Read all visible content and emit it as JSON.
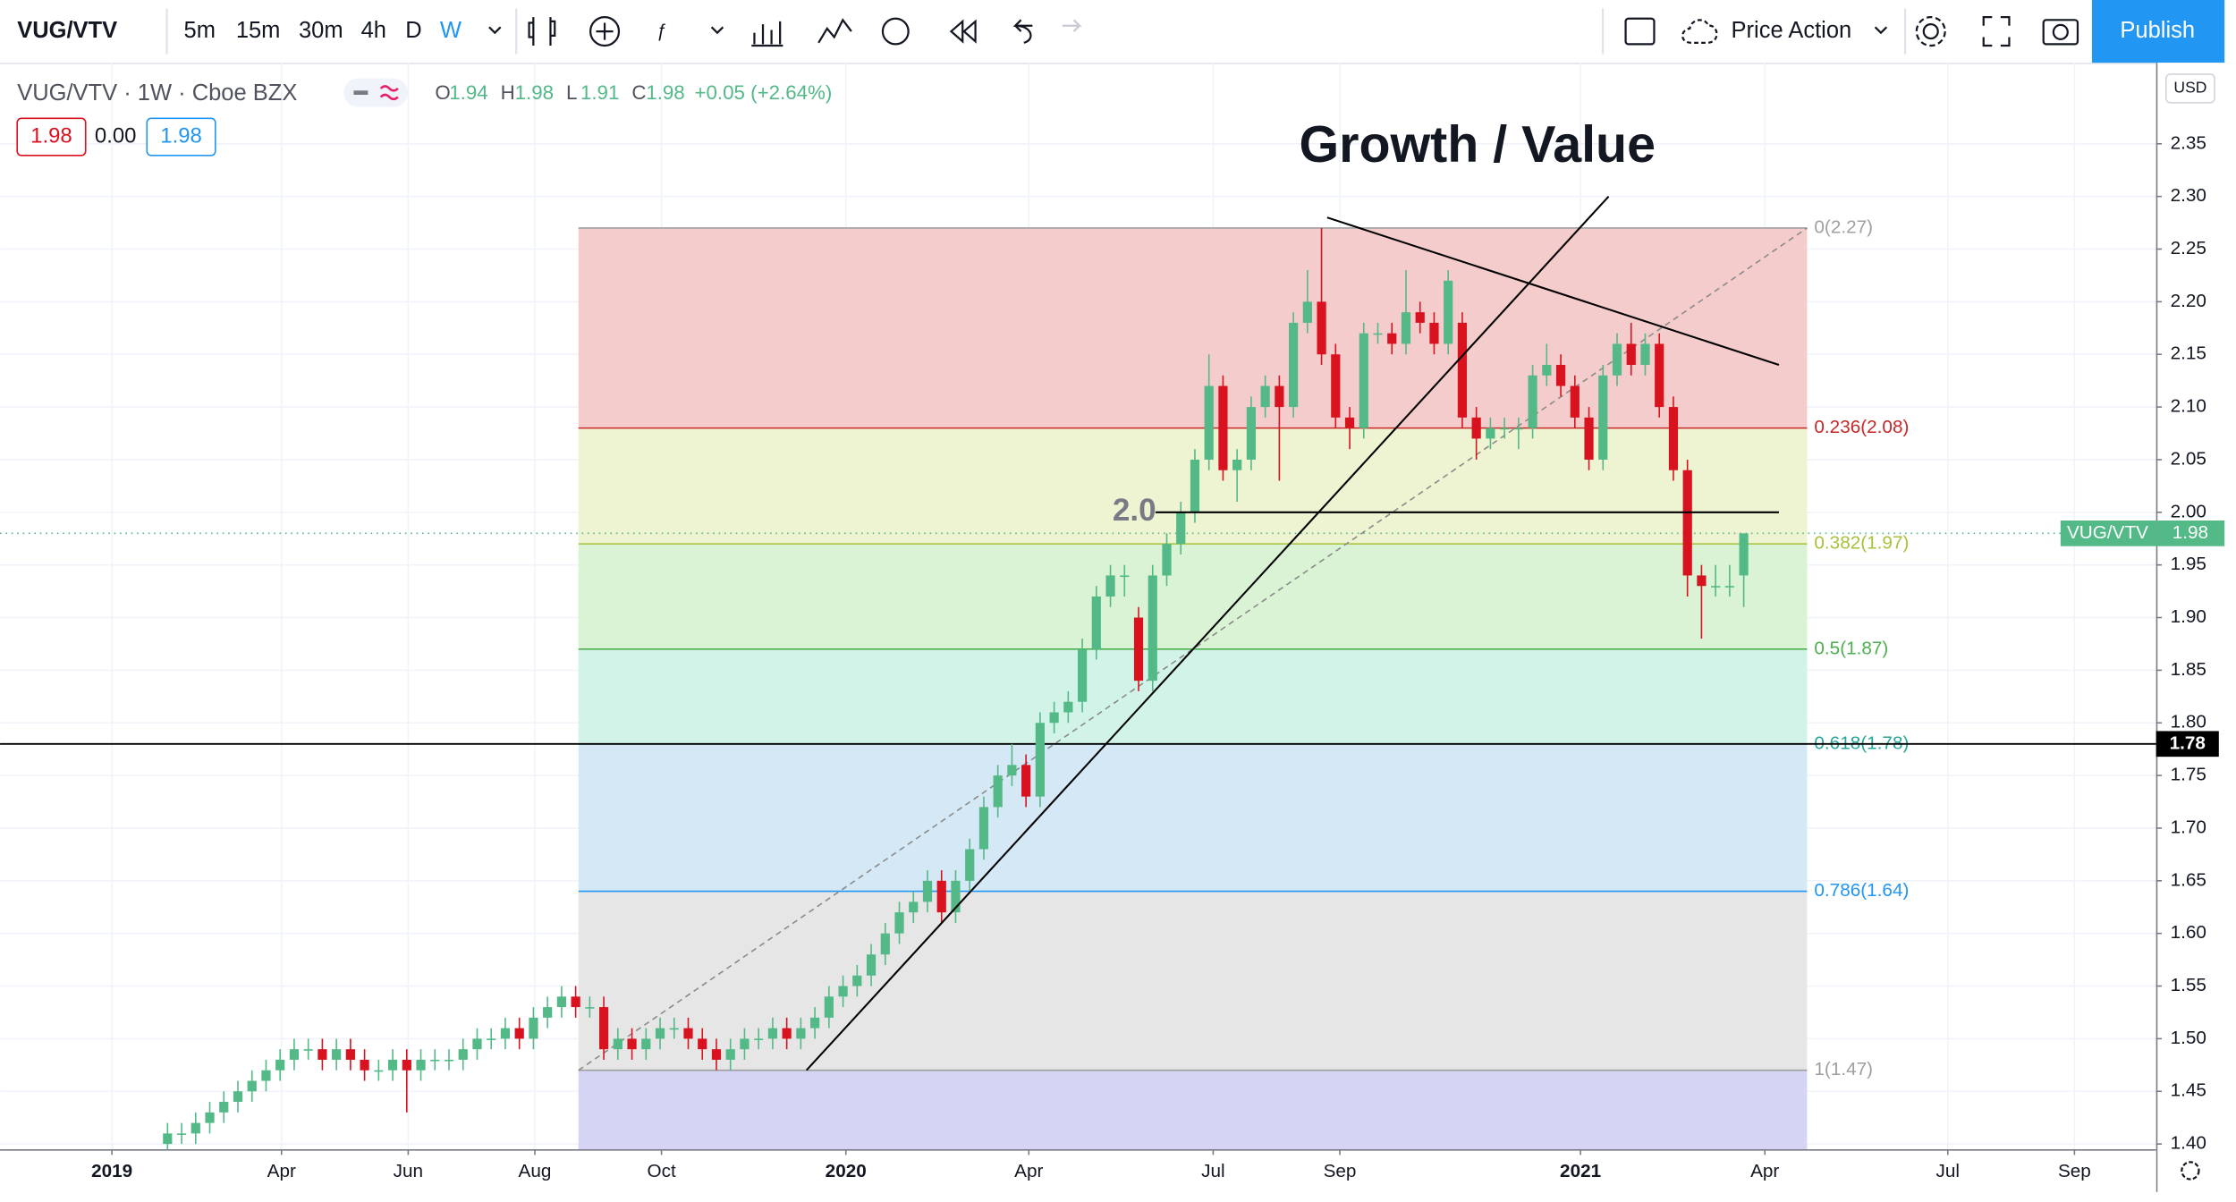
{
  "toolbar": {
    "symbol": "VUG/VTV",
    "intervals": [
      "5m",
      "15m",
      "30m",
      "4h",
      "D",
      "W"
    ],
    "active_interval": 5,
    "layout": "Price Action",
    "publish": "Publish"
  },
  "legend": {
    "title": "VUG/VTV · 1W · Cboe BZX",
    "ohlc": [
      {
        "key": "O",
        "value": 1.94
      },
      {
        "key": "H",
        "value": 1.98
      },
      {
        "key": "L",
        "value": 1.91
      },
      {
        "key": "C",
        "value": 1.98
      }
    ],
    "change": "+0.05 (+2.64%)",
    "boxes": [
      "1.98",
      "0.00",
      "1.98"
    ]
  },
  "chart_data": {
    "type": "candlestick",
    "title": "Growth / Value",
    "currency": "USD",
    "up_color": "#53b987",
    "down_color": "#d8121f",
    "xlim": [
      -11.9,
      141.3
    ],
    "ylim": [
      1.395,
      2.427
    ],
    "xticks": [
      {
        "value": -3.95,
        "label": "2019"
      },
      {
        "value": 8.1,
        "label": "Apr"
      },
      {
        "value": 17.1,
        "label": "Jun"
      },
      {
        "value": 26.1,
        "label": "Aug"
      },
      {
        "value": 35.1,
        "label": "Oct"
      },
      {
        "value": 48.2,
        "label": "2020"
      },
      {
        "value": 61.2,
        "label": "Apr"
      },
      {
        "value": 74.3,
        "label": "Jul"
      },
      {
        "value": 83.3,
        "label": "Sep"
      },
      {
        "value": 100.4,
        "label": "2021"
      },
      {
        "value": 113.5,
        "label": "Apr"
      },
      {
        "value": 126.5,
        "label": "Jul"
      },
      {
        "value": 135.5,
        "label": "Sep"
      }
    ],
    "yticks": [
      2.35,
      {
        "value": 2.3,
        "label": "2.30"
      },
      2.25,
      {
        "value": 2.2,
        "label": "2.20"
      },
      2.15,
      {
        "value": 2.1,
        "label": "2.10"
      },
      2.05,
      {
        "value": 2.0,
        "label": "2.00"
      },
      1.95,
      {
        "value": 1.9,
        "label": "1.90"
      },
      1.85,
      {
        "value": 1.8,
        "label": "1.80"
      },
      1.75,
      {
        "value": 1.7,
        "label": "1.70"
      },
      1.65,
      {
        "value": 1.6,
        "label": "1.60"
      },
      1.55,
      {
        "value": 1.5,
        "label": "1.50"
      },
      1.45,
      {
        "value": 1.4,
        "label": "1.40"
      }
    ],
    "grid": true,
    "open": [
      1.4,
      1.41,
      1.41,
      1.42,
      1.43,
      1.44,
      1.45,
      1.46,
      1.47,
      1.48,
      1.49,
      1.49,
      1.48,
      1.49,
      1.48,
      1.47,
      1.47,
      1.48,
      1.47,
      1.48,
      1.48,
      1.48,
      1.49,
      1.5,
      1.5,
      1.51,
      1.5,
      1.52,
      1.53,
      1.54,
      1.53,
      1.53,
      1.49,
      1.5,
      1.49,
      1.5,
      1.51,
      1.51,
      1.5,
      1.49,
      1.48,
      1.49,
      1.5,
      1.5,
      1.51,
      1.5,
      1.51,
      1.52,
      1.54,
      1.55,
      1.56,
      1.58,
      1.6,
      1.62,
      1.63,
      1.65,
      1.62,
      1.65,
      1.68,
      1.72,
      1.75,
      1.76,
      1.73,
      1.8,
      1.81,
      1.82,
      1.87,
      1.92,
      1.94,
      1.9,
      1.84,
      1.94,
      1.97,
      2.0,
      2.05,
      2.12,
      2.04,
      2.05,
      2.1,
      2.12,
      2.1,
      2.18,
      2.2,
      2.15,
      2.09,
      2.08,
      2.17,
      2.17,
      2.16,
      2.19,
      2.18,
      2.16,
      2.18,
      2.09,
      2.07,
      2.08,
      2.08,
      2.08,
      2.13,
      2.14,
      2.12,
      2.09,
      2.05,
      2.13,
      2.16,
      2.14,
      2.16,
      2.1,
      2.04,
      1.94,
      1.93,
      1.93,
      1.94
    ],
    "high": [
      1.42,
      1.42,
      1.43,
      1.44,
      1.45,
      1.46,
      1.47,
      1.48,
      1.49,
      1.5,
      1.5,
      1.5,
      1.5,
      1.5,
      1.49,
      1.48,
      1.49,
      1.49,
      1.49,
      1.49,
      1.49,
      1.5,
      1.51,
      1.51,
      1.52,
      1.52,
      1.53,
      1.54,
      1.55,
      1.55,
      1.54,
      1.54,
      1.51,
      1.51,
      1.51,
      1.52,
      1.52,
      1.52,
      1.51,
      1.5,
      1.5,
      1.51,
      1.51,
      1.52,
      1.52,
      1.52,
      1.53,
      1.55,
      1.56,
      1.57,
      1.59,
      1.61,
      1.63,
      1.64,
      1.66,
      1.66,
      1.66,
      1.69,
      1.73,
      1.76,
      1.78,
      1.77,
      1.81,
      1.82,
      1.83,
      1.88,
      1.93,
      1.95,
      1.95,
      1.91,
      1.95,
      1.98,
      2.01,
      2.06,
      2.15,
      2.13,
      2.06,
      2.11,
      2.13,
      2.13,
      2.19,
      2.23,
      2.27,
      2.16,
      2.1,
      2.18,
      2.18,
      2.18,
      2.23,
      2.2,
      2.19,
      2.23,
      2.19,
      2.1,
      2.09,
      2.09,
      2.09,
      2.14,
      2.16,
      2.15,
      2.13,
      2.1,
      2.14,
      2.17,
      2.18,
      2.17,
      2.17,
      2.11,
      2.05,
      1.95,
      1.95,
      1.95,
      1.98
    ],
    "low": [
      1.39,
      1.4,
      1.4,
      1.41,
      1.42,
      1.43,
      1.44,
      1.45,
      1.46,
      1.47,
      1.48,
      1.47,
      1.47,
      1.47,
      1.46,
      1.46,
      1.46,
      1.43,
      1.46,
      1.47,
      1.47,
      1.47,
      1.48,
      1.49,
      1.49,
      1.49,
      1.49,
      1.51,
      1.52,
      1.52,
      1.52,
      1.48,
      1.48,
      1.48,
      1.48,
      1.49,
      1.5,
      1.49,
      1.48,
      1.47,
      1.47,
      1.48,
      1.49,
      1.49,
      1.49,
      1.49,
      1.5,
      1.51,
      1.53,
      1.54,
      1.55,
      1.57,
      1.59,
      1.61,
      1.62,
      1.61,
      1.61,
      1.64,
      1.67,
      1.71,
      1.74,
      1.72,
      1.72,
      1.79,
      1.8,
      1.81,
      1.86,
      1.91,
      1.92,
      1.83,
      1.83,
      1.93,
      1.96,
      1.99,
      2.04,
      2.03,
      2.01,
      2.04,
      2.09,
      2.03,
      2.09,
      2.17,
      2.14,
      2.08,
      2.06,
      2.07,
      2.16,
      2.15,
      2.15,
      2.17,
      2.15,
      2.15,
      2.08,
      2.05,
      2.06,
      2.07,
      2.06,
      2.07,
      2.12,
      2.11,
      2.08,
      2.04,
      2.04,
      2.12,
      2.13,
      2.13,
      2.09,
      2.03,
      1.92,
      1.88,
      1.92,
      1.92,
      1.91
    ],
    "close": [
      1.41,
      1.41,
      1.42,
      1.43,
      1.44,
      1.45,
      1.46,
      1.47,
      1.48,
      1.49,
      1.49,
      1.48,
      1.49,
      1.48,
      1.47,
      1.47,
      1.48,
      1.47,
      1.48,
      1.48,
      1.48,
      1.49,
      1.5,
      1.5,
      1.51,
      1.5,
      1.52,
      1.53,
      1.54,
      1.53,
      1.53,
      1.49,
      1.5,
      1.49,
      1.5,
      1.51,
      1.51,
      1.5,
      1.49,
      1.48,
      1.49,
      1.5,
      1.5,
      1.51,
      1.5,
      1.51,
      1.52,
      1.54,
      1.55,
      1.56,
      1.58,
      1.6,
      1.62,
      1.63,
      1.65,
      1.62,
      1.65,
      1.68,
      1.72,
      1.75,
      1.76,
      1.73,
      1.8,
      1.81,
      1.82,
      1.87,
      1.92,
      1.94,
      1.94,
      1.84,
      1.94,
      1.97,
      2.0,
      2.05,
      2.12,
      2.04,
      2.05,
      2.1,
      2.12,
      2.1,
      2.18,
      2.2,
      2.15,
      2.09,
      2.08,
      2.17,
      2.17,
      2.16,
      2.19,
      2.18,
      2.16,
      2.22,
      2.09,
      2.07,
      2.08,
      2.08,
      2.08,
      2.13,
      2.14,
      2.12,
      2.09,
      2.05,
      2.13,
      2.16,
      2.14,
      2.16,
      2.1,
      2.04,
      1.94,
      1.93,
      1.93,
      1.93,
      1.98
    ],
    "last_price": {
      "value": 1.98,
      "label": "VUG/VTV",
      "color": "#53b987"
    },
    "hline": {
      "value": 1.78,
      "color": "#000000"
    },
    "fib": {
      "x": [
        29.2,
        116.5
      ],
      "prices": [
        2.27,
        2.08,
        1.97,
        1.87,
        1.78,
        1.64,
        1.47
      ],
      "labels": [
        "0(2.27)",
        "0.236(2.08)",
        "0.382(1.97)",
        "0.5(1.87)",
        "0.618(1.78)",
        "0.786(1.64)",
        "1(1.47)"
      ],
      "line_colors": [
        "#a0a0a0",
        "#c62828",
        "#a5c23a",
        "#4caf50",
        "#26a69a",
        "#2196f3",
        "#9e9e9e"
      ],
      "band_colors": [
        "#f5cccc",
        "#eef4d2",
        "#d9f3d4",
        "#d2f4e8",
        "#d4e8f5",
        "#e6e6e6",
        "#d6d4f5"
      ],
      "diagonal_color": "#8a8a8a"
    },
    "drawings": [
      {
        "from": [
          45.4,
          1.47
        ],
        "to": [
          102.4,
          2.3
        ],
        "color": "#000000"
      },
      {
        "from": [
          82.4,
          2.28
        ],
        "to": [
          114.5,
          2.14
        ],
        "color": "#000000"
      },
      {
        "from": [
          70.2,
          2.0
        ],
        "to": [
          114.5,
          2.0
        ],
        "color": "#000000"
      }
    ],
    "annotation": {
      "text": "2.0",
      "x": 68.7,
      "y": 2.0
    }
  }
}
